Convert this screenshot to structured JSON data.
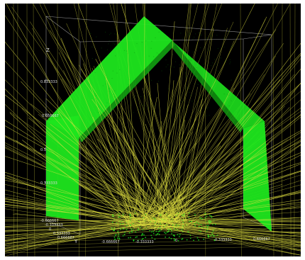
{
  "scene": {
    "background_color": "#000000",
    "frame_color": "#ffffff",
    "surface_color": "#1ee61e",
    "ray_color": "#e0e040",
    "box_color": "#c8c8c8",
    "z_axis_label": "Z",
    "y_axis_label": "Y",
    "z_ticks": [
      "0.333333",
      "0.5",
      "0.666667",
      "0.833333"
    ],
    "floor_ticks_left": [
      "-0.666667",
      "-0.333333",
      "0",
      "0.333333",
      "0.666667"
    ],
    "floor_ticks_bottom": [
      "-0.666667",
      "-0.333333",
      "0",
      "0.333333",
      "0.666667"
    ]
  }
}
